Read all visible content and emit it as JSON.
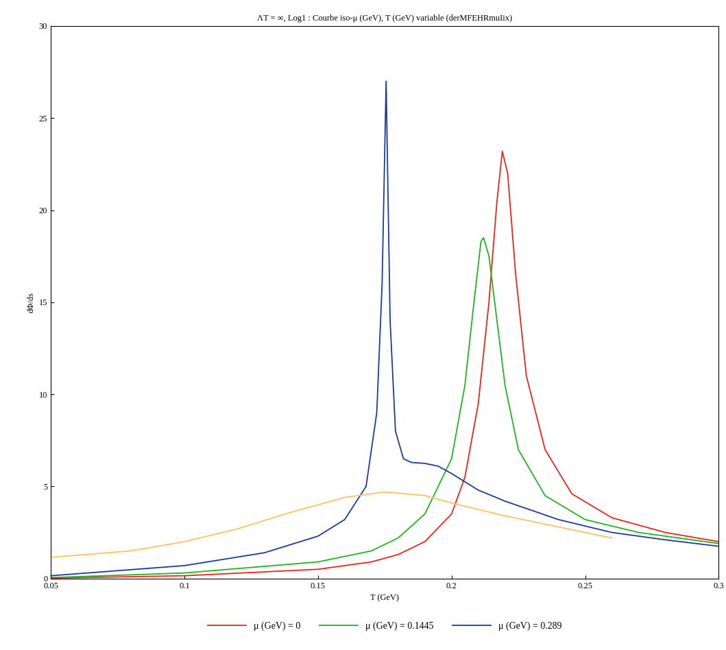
{
  "chart_data": {
    "type": "line",
    "title": "ΛT = ∞, Log1 : Courbe iso-μ (GeV), T (GeV) variable (derMFEHRmuIix)",
    "x_label": "T (GeV)",
    "y_label": "dΦ/ds",
    "xlim": [
      0.05,
      0.3
    ],
    "xticks": [
      0.05,
      0.1,
      0.15,
      0.2,
      0.25,
      0.3
    ],
    "ylim": [
      0,
      30
    ],
    "yticks": [
      0,
      5,
      10,
      15,
      20,
      25,
      30
    ],
    "legend": "lower center",
    "series": [
      {
        "name": "μ (GeV) = 0",
        "color": "#e3261c",
        "x": [
          0.05,
          0.1,
          0.15,
          0.17,
          0.18,
          0.19,
          0.2,
          0.205,
          0.21,
          0.214,
          0.217,
          0.219,
          0.221,
          0.224,
          0.228,
          0.235,
          0.245,
          0.26,
          0.28,
          0.3
        ],
        "values": [
          0.02,
          0.15,
          0.5,
          0.9,
          1.3,
          2.0,
          3.5,
          5.5,
          9.5,
          15,
          20.5,
          23.2,
          22,
          16.5,
          11,
          7,
          4.6,
          3.3,
          2.5,
          2.0
        ]
      },
      {
        "name": "μ (GeV) = 0.1445",
        "color": "#1fb41f",
        "x": [
          0.05,
          0.1,
          0.15,
          0.17,
          0.18,
          0.19,
          0.2,
          0.205,
          0.208,
          0.211,
          0.212,
          0.214,
          0.217,
          0.22,
          0.225,
          0.235,
          0.25,
          0.27,
          0.3
        ],
        "values": [
          0.05,
          0.3,
          0.9,
          1.5,
          2.2,
          3.5,
          6.5,
          10.5,
          14.5,
          18.3,
          18.5,
          17.5,
          14,
          10.5,
          7,
          4.5,
          3.2,
          2.5,
          1.9
        ]
      },
      {
        "name": "μ (GeV) = 0.289",
        "color": "#1a3c96",
        "x": [
          0.05,
          0.1,
          0.13,
          0.15,
          0.16,
          0.168,
          0.172,
          0.174,
          0.1755,
          0.177,
          0.179,
          0.182,
          0.185,
          0.19,
          0.195,
          0.2,
          0.21,
          0.22,
          0.24,
          0.26,
          0.28,
          0.3
        ],
        "values": [
          0.15,
          0.7,
          1.4,
          2.3,
          3.2,
          5,
          9,
          16,
          27,
          14,
          8,
          6.5,
          6.3,
          6.25,
          6.1,
          5.7,
          4.8,
          4.2,
          3.2,
          2.5,
          2.1,
          1.75
        ]
      },
      {
        "color": "#ffc060",
        "x": [
          0.05,
          0.08,
          0.1,
          0.12,
          0.14,
          0.16,
          0.175,
          0.19,
          0.2,
          0.22,
          0.24,
          0.26
        ],
        "values": [
          1.15,
          1.5,
          2.0,
          2.7,
          3.6,
          4.4,
          4.7,
          4.5,
          4.1,
          3.4,
          2.8,
          2.2
        ]
      }
    ]
  }
}
